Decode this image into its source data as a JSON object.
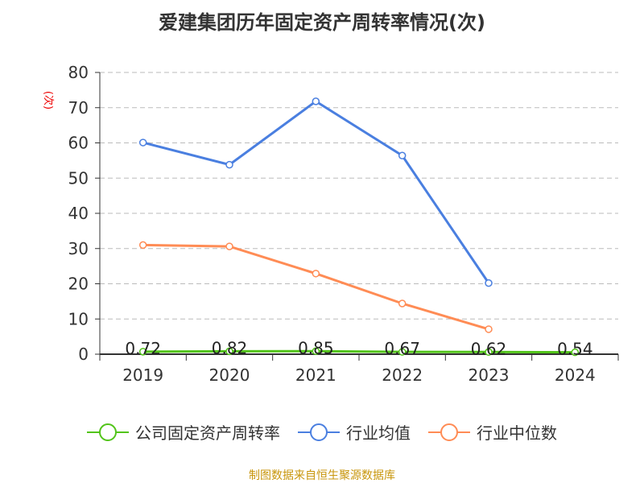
{
  "title": "爱建集团历年固定资产周转率情况(次)",
  "unit_label": "(次)",
  "source": "制图数据来自恒生聚源数据库",
  "chart_data": {
    "type": "line",
    "title": "爱建集团历年固定资产周转率情况(次)",
    "ylabel": "(次)",
    "categories": [
      "2019",
      "2020",
      "2021",
      "2022",
      "2023",
      "2024"
    ],
    "ylim": [
      0,
      80
    ],
    "yticks": [
      0,
      10,
      20,
      30,
      40,
      50,
      60,
      70,
      80
    ],
    "grid": true,
    "legend_position": "bottom",
    "series": [
      {
        "name": "公司固定资产周转率",
        "color": "#52c41a",
        "values": [
          0.72,
          0.82,
          0.85,
          0.67,
          0.62,
          0.54
        ],
        "labels": [
          "0.72",
          "0.82",
          "0.85",
          "0.67",
          "0.62",
          "0.54"
        ]
      },
      {
        "name": "行业均值",
        "color": "#4a7fe0",
        "values": [
          60.1,
          53.8,
          71.8,
          56.4,
          20.2,
          null
        ]
      },
      {
        "name": "行业中位数",
        "color": "#ff8c55",
        "values": [
          31.0,
          30.6,
          22.9,
          14.4,
          7.1,
          null
        ]
      }
    ]
  }
}
